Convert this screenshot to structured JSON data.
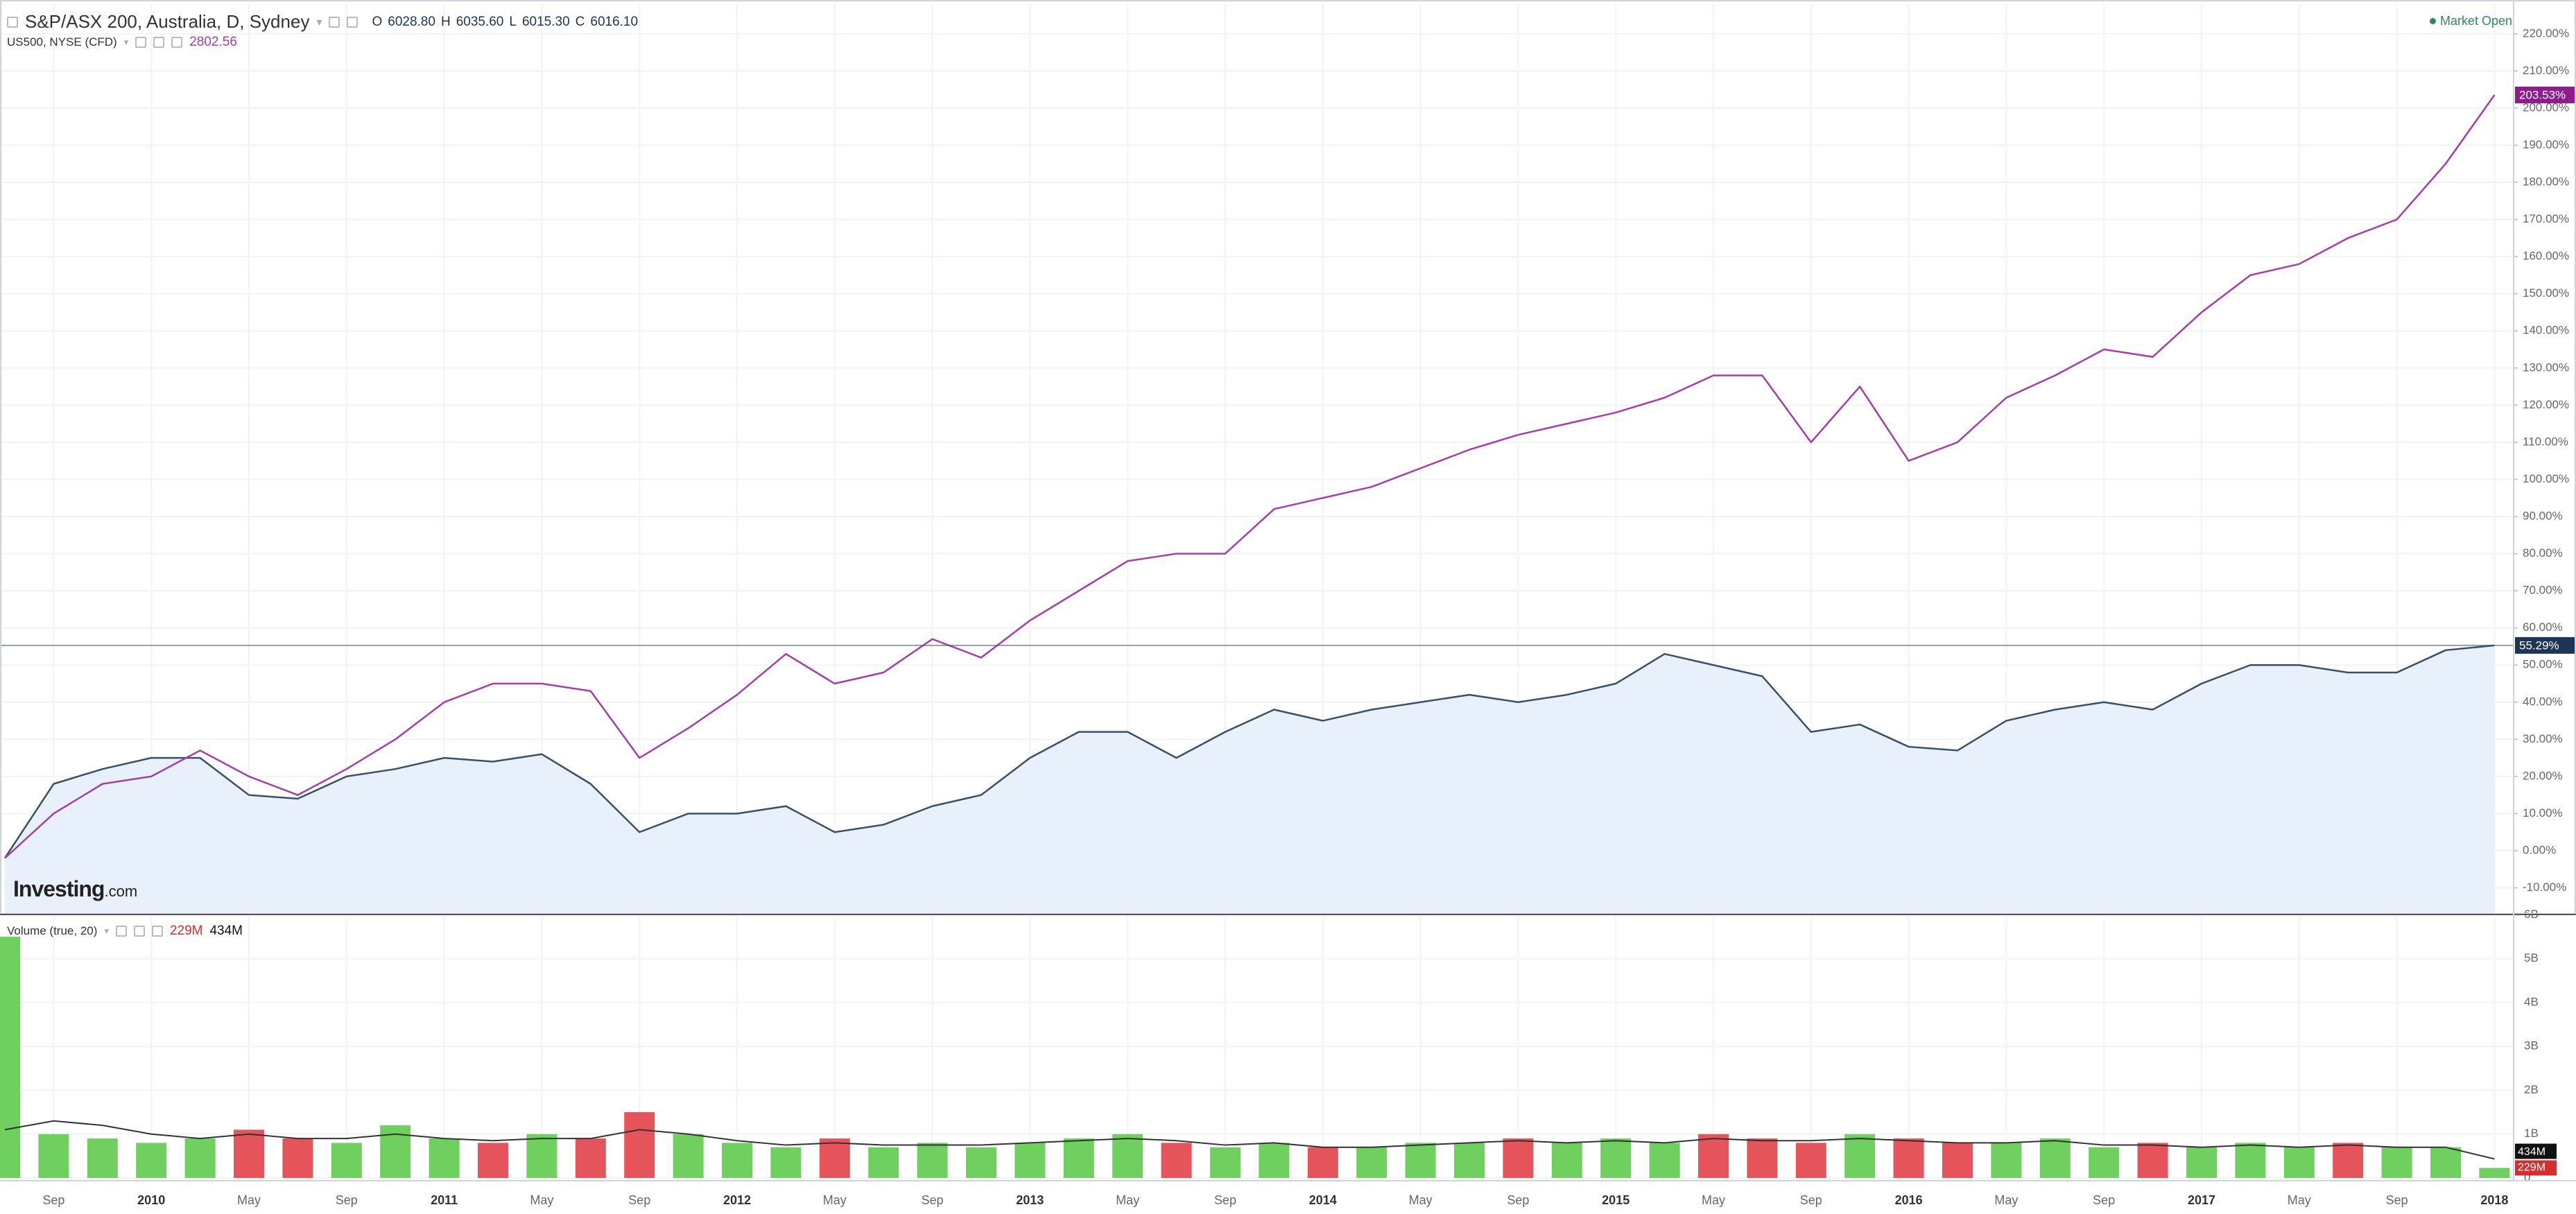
{
  "chart_data": {
    "type": "line",
    "status": "Market Open",
    "watermark": "Investing",
    "watermark_suffix": ".com",
    "ohlc": [
      {
        "name": "O",
        "value": 6028.8,
        "label": "6028.80"
      },
      {
        "name": "H",
        "value": 6035.6,
        "label": "6035.60"
      },
      {
        "name": "L",
        "value": 6015.3,
        "label": "6015.30"
      },
      {
        "name": "C",
        "value": 6016.1,
        "label": "6016.10"
      }
    ],
    "categories": [
      null,
      "Sep",
      null,
      "2010",
      null,
      "May",
      null,
      "Sep",
      null,
      "2011",
      null,
      "May",
      null,
      "Sep",
      null,
      "2012",
      null,
      "May",
      null,
      "Sep",
      null,
      "2013",
      null,
      "May",
      null,
      "Sep",
      null,
      "2014",
      null,
      "May",
      null,
      "Sep",
      null,
      "2015",
      null,
      "May",
      null,
      "Sep",
      null,
      "2016",
      null,
      "May",
      null,
      "Sep",
      null,
      "2017",
      null,
      "May",
      null,
      "Sep",
      null,
      "2018"
    ],
    "series": [
      {
        "name": "S&P/ASX 200, Australia, D, Sydney",
        "color": "#3a5068",
        "fill": "#e8f1fb",
        "area": true,
        "values": [
          -2,
          18,
          22,
          25,
          25,
          15,
          14,
          20,
          22,
          25,
          24,
          26,
          18,
          5,
          10,
          10,
          12,
          5,
          7,
          12,
          15,
          25,
          32,
          32,
          25,
          32,
          38,
          35,
          38,
          40,
          42,
          40,
          42,
          45,
          53,
          50,
          47,
          32,
          34,
          28,
          27,
          35,
          38,
          40,
          38,
          45,
          50,
          50,
          48,
          48,
          54,
          55.29
        ],
        "last_label": "55.29%",
        "badge_color": "#1d3557"
      },
      {
        "name": "US500, NYSE (CFD)",
        "color": "#a53ea8",
        "price": 2802.56,
        "area": false,
        "values": [
          -2,
          10,
          18,
          20,
          27,
          20,
          15,
          22,
          30,
          40,
          45,
          45,
          43,
          25,
          33,
          42,
          53,
          45,
          48,
          57,
          52,
          62,
          70,
          78,
          80,
          80,
          92,
          95,
          98,
          103,
          108,
          112,
          115,
          118,
          122,
          128,
          128,
          110,
          125,
          105,
          110,
          122,
          128,
          135,
          133,
          145,
          155,
          158,
          165,
          170,
          185,
          203.53
        ],
        "last_label": "203.53%",
        "badge_color": "#8e1b8f"
      }
    ],
    "ylim": [
      -16.8,
      227.8
    ],
    "yticks": [
      {
        "value": -10,
        "label": "-10.00%"
      },
      {
        "value": 0,
        "label": "0.00%"
      },
      {
        "value": 10,
        "label": "10.00%"
      },
      {
        "value": 20,
        "label": "20.00%"
      },
      {
        "value": 30,
        "label": "30.00%"
      },
      {
        "value": 40,
        "label": "40.00%"
      },
      {
        "value": 50,
        "label": "50.00%"
      },
      {
        "value": 60,
        "label": "60.00%"
      },
      {
        "value": 70,
        "label": "70.00%"
      },
      {
        "value": 80,
        "label": "80.00%"
      },
      {
        "value": 90,
        "label": "90.00%"
      },
      {
        "value": 100,
        "label": "100.00%"
      },
      {
        "value": 110,
        "label": "110.00%"
      },
      {
        "value": 120,
        "label": "120.00%"
      },
      {
        "value": 130,
        "label": "130.00%"
      },
      {
        "value": 140,
        "label": "140.00%"
      },
      {
        "value": 150,
        "label": "150.00%"
      },
      {
        "value": 160,
        "label": "160.00%"
      },
      {
        "value": 170,
        "label": "170.00%"
      },
      {
        "value": 180,
        "label": "180.00%"
      },
      {
        "value": 190,
        "label": "190.00%"
      },
      {
        "value": 200,
        "label": "200.00%"
      },
      {
        "value": 210,
        "label": "210.00%"
      },
      {
        "value": 220,
        "label": "220.00%"
      }
    ],
    "grid": true,
    "volume": {
      "name": "Volume (true, 20)",
      "up_color": "#6fcf5f",
      "down_color": "#e5535b",
      "values": [
        5.5,
        1.0,
        0.9,
        0.8,
        0.9,
        1.1,
        0.9,
        0.8,
        1.2,
        0.9,
        0.8,
        1.0,
        0.9,
        1.5,
        1.0,
        0.8,
        0.7,
        0.9,
        0.7,
        0.8,
        0.7,
        0.8,
        0.9,
        1.0,
        0.8,
        0.7,
        0.8,
        0.7,
        0.7,
        0.8,
        0.8,
        0.9,
        0.8,
        0.9,
        0.8,
        1.0,
        0.9,
        0.8,
        1.0,
        0.9,
        0.8,
        0.8,
        0.9,
        0.7,
        0.8,
        0.7,
        0.8,
        0.7,
        0.8,
        0.7,
        0.7,
        0.229
      ],
      "last_label": "229M",
      "ma": {
        "color": "#333333",
        "values": [
          1.1,
          1.3,
          1.2,
          1.0,
          0.9,
          1.0,
          0.9,
          0.9,
          1.0,
          0.9,
          0.85,
          0.9,
          0.9,
          1.1,
          1.0,
          0.85,
          0.75,
          0.8,
          0.75,
          0.75,
          0.75,
          0.8,
          0.85,
          0.9,
          0.85,
          0.75,
          0.8,
          0.7,
          0.7,
          0.75,
          0.8,
          0.85,
          0.8,
          0.85,
          0.8,
          0.9,
          0.85,
          0.85,
          0.9,
          0.85,
          0.8,
          0.8,
          0.85,
          0.75,
          0.75,
          0.7,
          0.75,
          0.7,
          0.75,
          0.7,
          0.7,
          0.434
        ],
        "last_label": "434M"
      },
      "ylim": [
        0,
        5.96
      ],
      "yticks": [
        0,
        {
          "value": 1,
          "label": "1B"
        },
        {
          "value": 2,
          "label": "2B"
        },
        {
          "value": 3,
          "label": "3B"
        },
        {
          "value": 4,
          "label": "4B"
        },
        {
          "value": 5,
          "label": "5B"
        },
        {
          "value": 6,
          "label": "6B"
        }
      ]
    }
  }
}
